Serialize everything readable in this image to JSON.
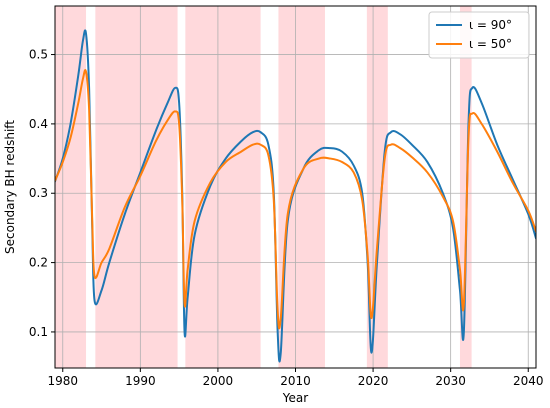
{
  "chart_data": {
    "type": "line",
    "title": "",
    "xlabel": "Year",
    "ylabel": "Secondary BH redshift",
    "xlim": [
      1979,
      2041
    ],
    "ylim": [
      0.048,
      0.57
    ],
    "xticks": [
      1980,
      1990,
      2000,
      2010,
      2020,
      2030,
      2040
    ],
    "yticks": [
      0.1,
      0.2,
      0.3,
      0.4,
      0.5
    ],
    "grid": true,
    "legend_position": "top-right",
    "shaded_intervals": [
      [
        1979,
        1983.0
      ],
      [
        1984.2,
        1994.8
      ],
      [
        1995.8,
        2005.5
      ],
      [
        2007.8,
        2013.8
      ],
      [
        2019.2,
        2021.9
      ],
      [
        2031.2,
        2032.7
      ]
    ],
    "shade_color": "#ffd9dc",
    "series": [
      {
        "name": "ι = 90°",
        "color": "#1f77b4",
        "x": [
          1979,
          1980,
          1981,
          1982,
          1982.6,
          1983.0,
          1983.4,
          1983.8,
          1984.1,
          1985,
          1986,
          1988,
          1990,
          1992,
          1993.5,
          1994.5,
          1995.0,
          1995.4,
          1995.7,
          1996.1,
          1997,
          1999,
          2001,
          2003,
          2004.5,
          2005.5,
          2006.5,
          2007.2,
          2007.7,
          2008.1,
          2009,
          2011,
          2013,
          2014.5,
          2016,
          2017.5,
          2018.6,
          2019.3,
          2019.8,
          2020.5,
          2021.5,
          2022.3,
          2023.5,
          2025,
          2027,
          2029,
          2030.3,
          2031.2,
          2031.7,
          2032.3,
          2032.8,
          2034,
          2036,
          2038,
          2040,
          2041
        ],
        "y": [
          0.317,
          0.35,
          0.4,
          0.47,
          0.52,
          0.53,
          0.45,
          0.25,
          0.145,
          0.16,
          0.2,
          0.27,
          0.33,
          0.39,
          0.43,
          0.452,
          0.43,
          0.3,
          0.1,
          0.15,
          0.24,
          0.31,
          0.35,
          0.375,
          0.388,
          0.388,
          0.37,
          0.3,
          0.1,
          0.07,
          0.26,
          0.335,
          0.362,
          0.365,
          0.36,
          0.34,
          0.3,
          0.2,
          0.07,
          0.2,
          0.36,
          0.388,
          0.385,
          0.37,
          0.345,
          0.3,
          0.25,
          0.16,
          0.1,
          0.4,
          0.452,
          0.43,
          0.37,
          0.32,
          0.27,
          0.235
        ]
      },
      {
        "name": "ι = 50°",
        "color": "#ff7f0e",
        "x": [
          1979,
          1980,
          1981,
          1982,
          1982.6,
          1983.0,
          1983.4,
          1983.8,
          1984.1,
          1985,
          1986,
          1988,
          1990,
          1992,
          1993.5,
          1994.5,
          1995.0,
          1995.4,
          1995.7,
          1996.1,
          1997,
          1999,
          2001,
          2003,
          2004.5,
          2005.5,
          2006.5,
          2007.2,
          2007.7,
          2008.1,
          2009,
          2011,
          2013,
          2014.5,
          2016,
          2017.5,
          2018.6,
          2019.3,
          2019.8,
          2020.5,
          2021.5,
          2022.3,
          2023.5,
          2025,
          2027,
          2029,
          2030.3,
          2031.2,
          2031.7,
          2032.3,
          2032.8,
          2034,
          2036,
          2038,
          2040,
          2041
        ],
        "y": [
          0.318,
          0.345,
          0.38,
          0.43,
          0.465,
          0.475,
          0.42,
          0.26,
          0.18,
          0.2,
          0.22,
          0.28,
          0.325,
          0.375,
          0.405,
          0.418,
          0.4,
          0.29,
          0.14,
          0.19,
          0.26,
          0.315,
          0.345,
          0.36,
          0.37,
          0.37,
          0.355,
          0.29,
          0.13,
          0.12,
          0.27,
          0.335,
          0.35,
          0.35,
          0.345,
          0.33,
          0.29,
          0.21,
          0.12,
          0.22,
          0.35,
          0.37,
          0.365,
          0.352,
          0.33,
          0.295,
          0.26,
          0.19,
          0.14,
          0.38,
          0.415,
          0.4,
          0.36,
          0.315,
          0.275,
          0.245
        ]
      }
    ]
  }
}
